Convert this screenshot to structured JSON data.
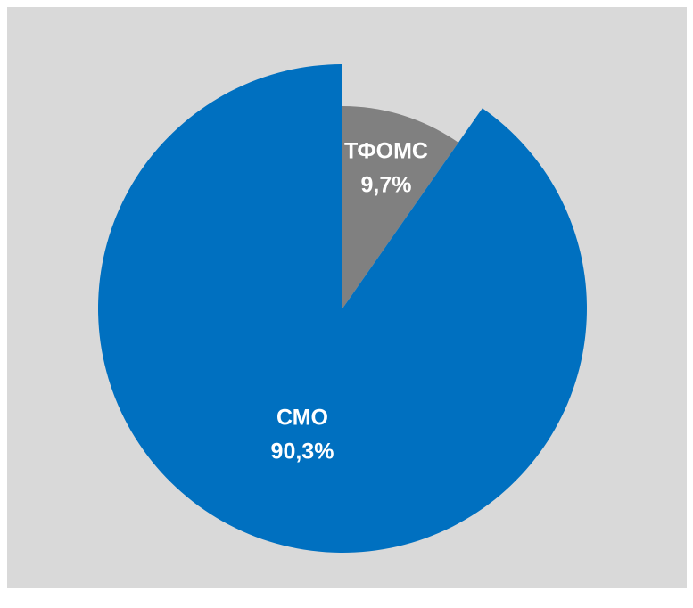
{
  "chart_data": {
    "type": "pie",
    "categories": [
      "ТФОМС",
      "СМО"
    ],
    "values": [
      9.7,
      90.3
    ],
    "value_labels": [
      "9,7%",
      "90,3%"
    ],
    "colors": [
      "#808080",
      "#0070c0"
    ]
  }
}
